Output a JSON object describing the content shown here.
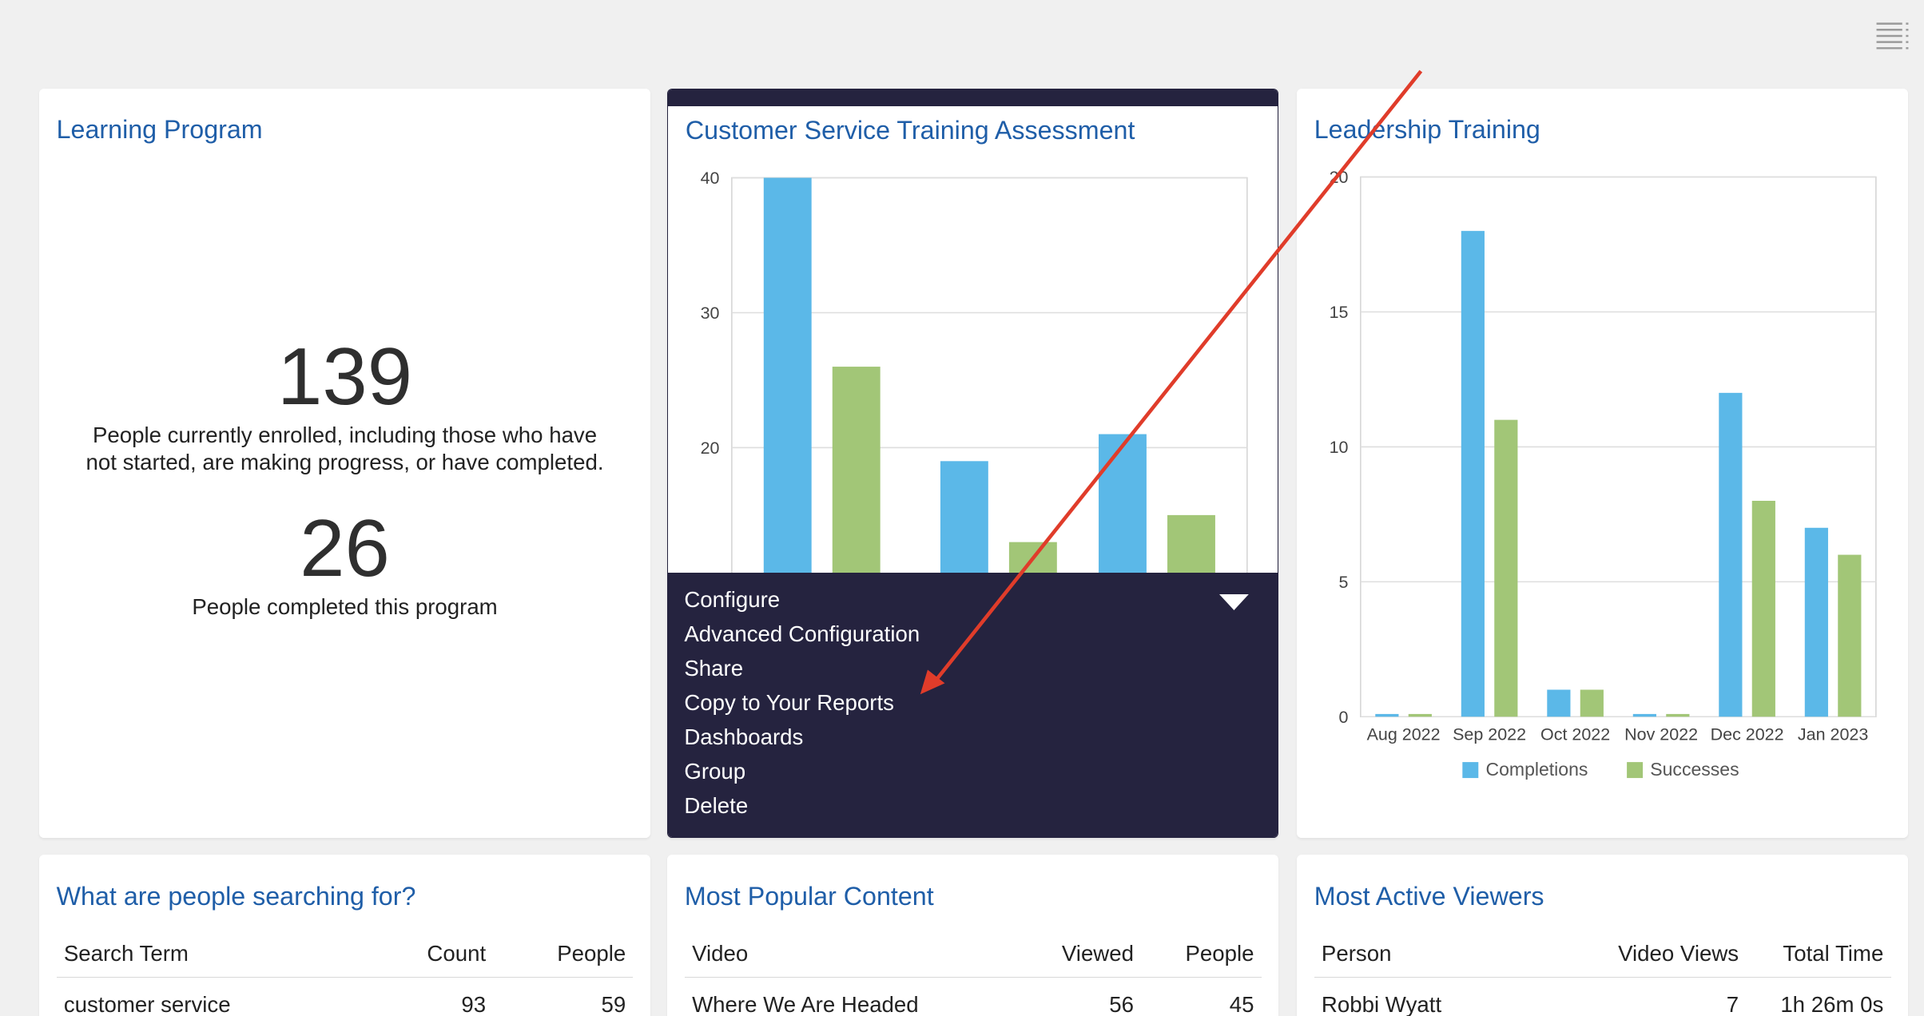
{
  "header": {
    "menu_icon": "list-menu-icon"
  },
  "learning_program": {
    "title": "Learning Program",
    "enrolled_count": "139",
    "enrolled_desc_1": "People currently enrolled, including those who have",
    "enrolled_desc_2": "not started, are making progress, or have completed.",
    "completed_count": "26",
    "completed_desc": "People completed this program"
  },
  "cst_assessment": {
    "title": "Customer Service Training Assessment",
    "menu": {
      "items": [
        "Configure",
        "Advanced Configuration",
        "Share",
        "Copy to Your Reports",
        "Dashboards",
        "Group",
        "Delete"
      ],
      "caret_icon": "caret-down-icon"
    },
    "chart_data": {
      "type": "bar",
      "ylim": [
        0,
        40
      ],
      "yticks": [
        "40",
        "30",
        "20"
      ],
      "series": [
        {
          "values": [
            40,
            19,
            21
          ],
          "color": "#5bb8e8"
        },
        {
          "values": [
            26,
            13,
            15
          ],
          "color": "#a2c677"
        }
      ],
      "visible_y_min": 11
    }
  },
  "leadership": {
    "title": "Leadership Training",
    "chart_data": {
      "type": "bar",
      "categories": [
        "Aug 2022",
        "Sep 2022",
        "Oct 2022",
        "Nov 2022",
        "Dec 2022",
        "Jan 2023"
      ],
      "yticks": [
        "0",
        "5",
        "10",
        "15",
        "20"
      ],
      "ylim": [
        0,
        20
      ],
      "grid": true,
      "legend_position": "bottom",
      "series": [
        {
          "name": "Completions",
          "color": "#5bb8e8",
          "values": [
            0.1,
            18,
            1,
            0.1,
            12,
            7
          ]
        },
        {
          "name": "Successes",
          "color": "#a2c677",
          "values": [
            0.1,
            11,
            1,
            0.1,
            8,
            6
          ]
        }
      ]
    }
  },
  "searching": {
    "title": "What are people searching for?",
    "headers": [
      "Search Term",
      "Count",
      "People"
    ],
    "rows": [
      [
        "customer service",
        "93",
        "59"
      ]
    ]
  },
  "popular": {
    "title": "Most Popular Content",
    "headers": [
      "Video",
      "Viewed",
      "People"
    ],
    "rows": [
      [
        "Where We Are Headed",
        "56",
        "45"
      ]
    ]
  },
  "viewers": {
    "title": "Most Active Viewers",
    "headers": [
      "Person",
      "Video Views",
      "Total Time"
    ],
    "rows": [
      [
        "Robbi Wyatt",
        "7",
        "1h 26m 0s"
      ]
    ]
  },
  "annotation": {
    "color": "#e03c2a"
  }
}
